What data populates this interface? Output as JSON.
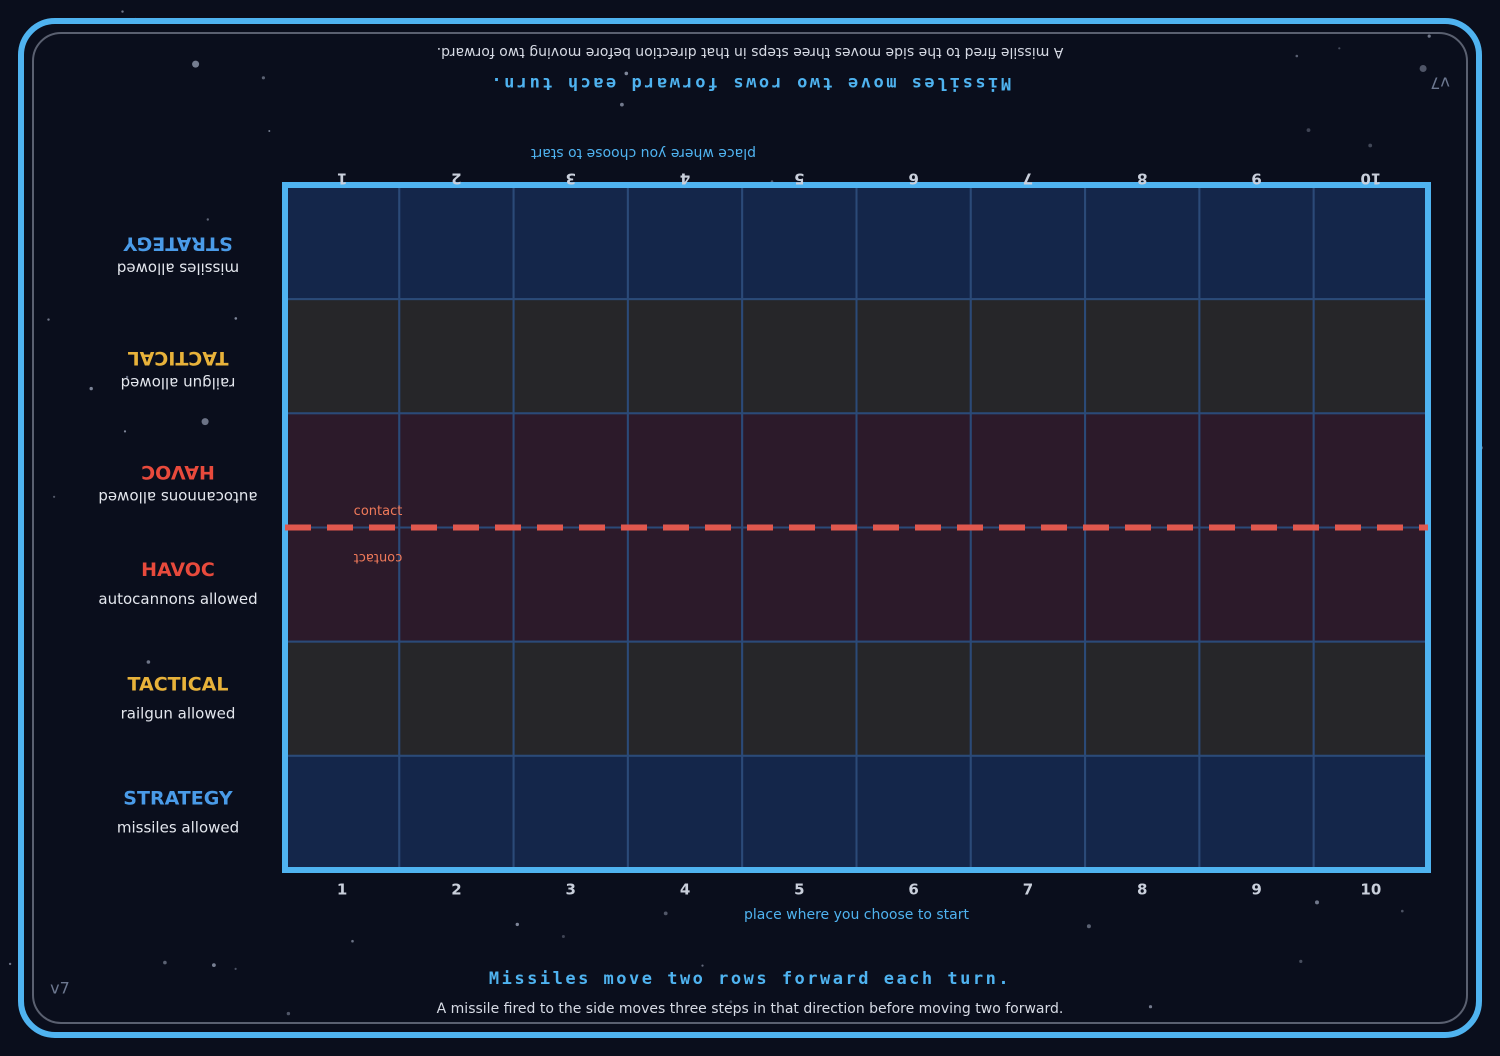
{
  "version": "v7",
  "rules": {
    "headline": "Missiles move two rows forward each turn.",
    "detail": "A missile fired to the side moves three steps in that direction before moving two forward."
  },
  "columns": [
    1,
    2,
    3,
    4,
    5,
    6,
    7,
    8,
    9,
    10
  ],
  "column_caption": "place where you choose to start",
  "rows": [
    {
      "name": "STRATEGY",
      "note": "missiles allowed"
    },
    {
      "name": "TACTICAL",
      "note": "railgun allowed"
    },
    {
      "name": "HAVOC",
      "note": "autocannons allowed"
    }
  ],
  "contact_label": "contact"
}
